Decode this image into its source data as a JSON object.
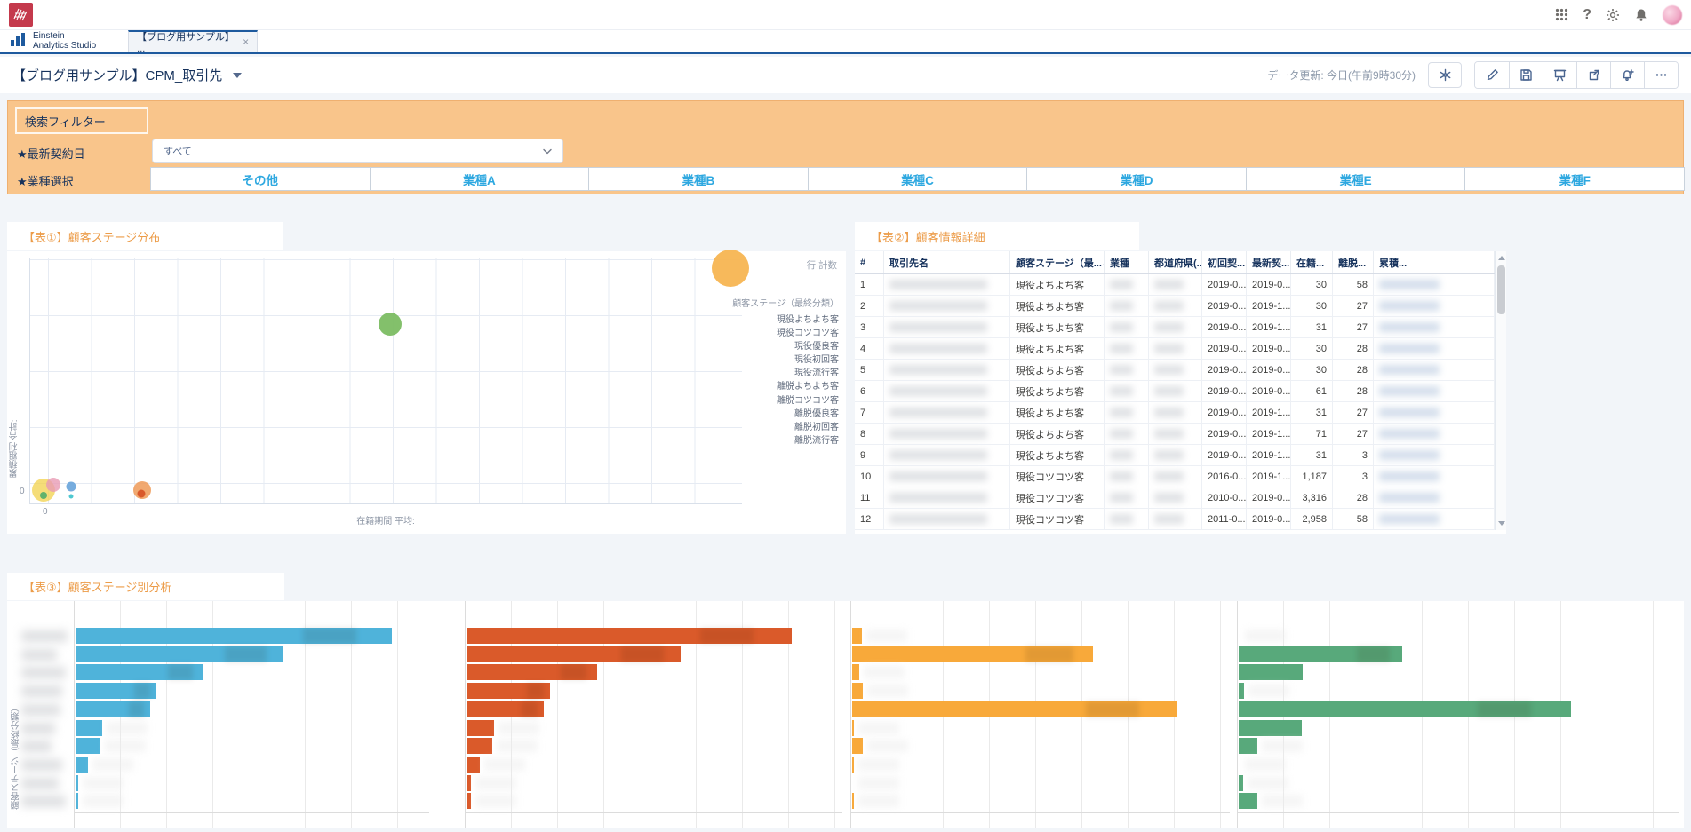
{
  "brand": {
    "line1": "Einstein",
    "line2": "Analytics Studio"
  },
  "tab": {
    "label": "【ブログ用サンプル】 ...",
    "close": "×"
  },
  "top_icons": {
    "app_launcher": "grid-dots",
    "help": "?",
    "settings": "gear",
    "notifications": "bell",
    "avatar": "flower-photo"
  },
  "header": {
    "title": "【ブログ用サンプル】CPM_取引先",
    "data_updated": "データ更新: 今日(午前9時30分)",
    "toolbar_icons": [
      "asterisk-initial-view",
      "pencil-edit",
      "floppy-save",
      "easel-present",
      "share-arrow",
      "bell-plus-subscribe",
      "ellipsis-more"
    ]
  },
  "filters": {
    "panel_title": "検索フィルター",
    "accent_color": "#F9C58B",
    "date_filter": {
      "label": "★最新契約日",
      "value": "すべて"
    },
    "industry_filter": {
      "label": "★業種選択",
      "options": [
        "その他",
        "業種A",
        "業種B",
        "業種C",
        "業種D",
        "業種E",
        "業種F"
      ],
      "option_text_color": "#2EA8E0"
    }
  },
  "chart1": {
    "title": "【表①】顧客ステージ分布",
    "row_count_label": "行 計数",
    "legend_title": "顧客ステージ（最終分類）",
    "legend_items": [
      "現役よちよち客",
      "現役コツコツ客",
      "現役優良客",
      "現役初回客",
      "現役流行客",
      "離脱よちよち客",
      "離脱コツコツ客",
      "離脱優良客",
      "離脱初回客",
      "離脱流行客"
    ],
    "x_axis_label": "在籍期間 平均:",
    "y_axis_label": "累積粗利 合計:",
    "x_tick": "0",
    "y_tick": "0"
  },
  "table2": {
    "title": "【表②】顧客情報詳細",
    "columns": [
      "#",
      "取引先名",
      "顧客ステージ（最...",
      "業種",
      "都道府県(...",
      "初回契...",
      "最新契...",
      "在籍...",
      "離脱...",
      "累積..."
    ],
    "sorted_column": "顧客ステージ（最...",
    "sort_direction": "asc",
    "sort_glyph": "▲",
    "blurred_columns": [
      "取引先名",
      "業種",
      "都道府県(...",
      "累積..."
    ],
    "rows": [
      {
        "n": "1",
        "stage": "現役よちよち客",
        "first": "2019-0...",
        "latest": "2019-0...",
        "tenure": "30",
        "churn": "58"
      },
      {
        "n": "2",
        "stage": "現役よちよち客",
        "first": "2019-0...",
        "latest": "2019-1...",
        "tenure": "30",
        "churn": "27"
      },
      {
        "n": "3",
        "stage": "現役よちよち客",
        "first": "2019-0...",
        "latest": "2019-1...",
        "tenure": "31",
        "churn": "27"
      },
      {
        "n": "4",
        "stage": "現役よちよち客",
        "first": "2019-0...",
        "latest": "2019-0...",
        "tenure": "30",
        "churn": "28"
      },
      {
        "n": "5",
        "stage": "現役よちよち客",
        "first": "2019-0...",
        "latest": "2019-0...",
        "tenure": "30",
        "churn": "28"
      },
      {
        "n": "6",
        "stage": "現役よちよち客",
        "first": "2019-0...",
        "latest": "2019-0...",
        "tenure": "61",
        "churn": "28"
      },
      {
        "n": "7",
        "stage": "現役よちよち客",
        "first": "2019-0...",
        "latest": "2019-1...",
        "tenure": "31",
        "churn": "27"
      },
      {
        "n": "8",
        "stage": "現役よちよち客",
        "first": "2019-0...",
        "latest": "2019-1...",
        "tenure": "71",
        "churn": "27"
      },
      {
        "n": "9",
        "stage": "現役よちよち客",
        "first": "2019-0...",
        "latest": "2019-1...",
        "tenure": "31",
        "churn": "3"
      },
      {
        "n": "10",
        "stage": "現役コツコツ客",
        "first": "2016-0...",
        "latest": "2019-1...",
        "tenure": "1,187",
        "churn": "3"
      },
      {
        "n": "11",
        "stage": "現役コツコツ客",
        "first": "2010-0...",
        "latest": "2019-0...",
        "tenure": "3,316",
        "churn": "28"
      },
      {
        "n": "12",
        "stage": "現役コツコツ客",
        "first": "2011-0...",
        "latest": "2019-0...",
        "tenure": "2,958",
        "churn": "58"
      }
    ]
  },
  "chart3": {
    "title": "【表③】顧客ステージ別分析",
    "y_axis_label": "顧客ステージ（最終分類）",
    "category_labels": "blurred in screenshot"
  },
  "chart_data": [
    {
      "type": "scatter",
      "title": "【表①】顧客ステージ分布",
      "xlabel": "在籍期間 平均:",
      "ylabel": "累積粗利 合計:",
      "x_tick_labels": [
        "0"
      ],
      "y_tick_labels": [
        "0"
      ],
      "legend_position": "right",
      "legend_title": "顧客ステージ（最終分類）",
      "legend": [
        "現役よちよち客",
        "現役コツコツ客",
        "現役優良客",
        "現役初回客",
        "現役流行客",
        "離脱よちよち客",
        "離脱コツコツ客",
        "離脱優良客",
        "離脱初回客",
        "離脱流行客"
      ],
      "grid": true,
      "note": "axis values unlabeled; bubble positions as fractions of plot area, radius in px",
      "points": [
        {
          "x": 0.984,
          "y": 0.045,
          "r": 21,
          "color": "#F7B552",
          "opacity": 0.95
        },
        {
          "x": 0.506,
          "y": 0.27,
          "r": 13,
          "color": "#7CBD63",
          "opacity": 0.95
        },
        {
          "x": 0.019,
          "y": 0.945,
          "r": 13,
          "color": "#F2D24B",
          "opacity": 0.75
        },
        {
          "x": 0.032,
          "y": 0.925,
          "r": 8,
          "color": "#E89BB4",
          "opacity": 0.8
        },
        {
          "x": 0.057,
          "y": 0.93,
          "r": 5.5,
          "color": "#6FA8DC",
          "opacity": 0.95
        },
        {
          "x": 0.019,
          "y": 0.968,
          "r": 4,
          "color": "#57B06B",
          "opacity": 0.95
        },
        {
          "x": 0.057,
          "y": 0.972,
          "r": 2.5,
          "color": "#45C5CE",
          "opacity": 0.95
        },
        {
          "x": 0.157,
          "y": 0.945,
          "r": 10,
          "color": "#EF9A57",
          "opacity": 0.85
        },
        {
          "x": 0.156,
          "y": 0.962,
          "r": 4.5,
          "color": "#D9582A",
          "opacity": 1
        }
      ]
    },
    {
      "type": "bar",
      "orientation": "horizontal",
      "title": "【表③】顧客ステージ別分析",
      "ylabel": "顧客ステージ（最終分類）",
      "num_categories": 10,
      "categories_blurred": true,
      "grid": true,
      "value_note": "axis unlabeled; values are fractions of each panel's full width",
      "series": [
        {
          "name": "panel-1",
          "color": "#4FB3DA",
          "values": [
            0.89,
            0.585,
            0.36,
            0.228,
            0.21,
            0.075,
            0.07,
            0.036,
            0.008,
            0.008
          ]
        },
        {
          "name": "panel-2",
          "color": "#DA5A2A",
          "values": [
            0.86,
            0.568,
            0.346,
            0.222,
            0.204,
            0.073,
            0.068,
            0.035,
            0.011,
            0.011
          ]
        },
        {
          "name": "panel-3",
          "color": "#F8A93A",
          "values": [
            0.025,
            0.635,
            0.018,
            0.028,
            0.855,
            0.005,
            0.028,
            0.002,
            0.0,
            0.004
          ]
        },
        {
          "name": "panel-4",
          "color": "#58A97B",
          "values": [
            0.0,
            0.37,
            0.145,
            0.012,
            0.75,
            0.142,
            0.042,
            0.0,
            0.011,
            0.042
          ]
        }
      ]
    }
  ]
}
